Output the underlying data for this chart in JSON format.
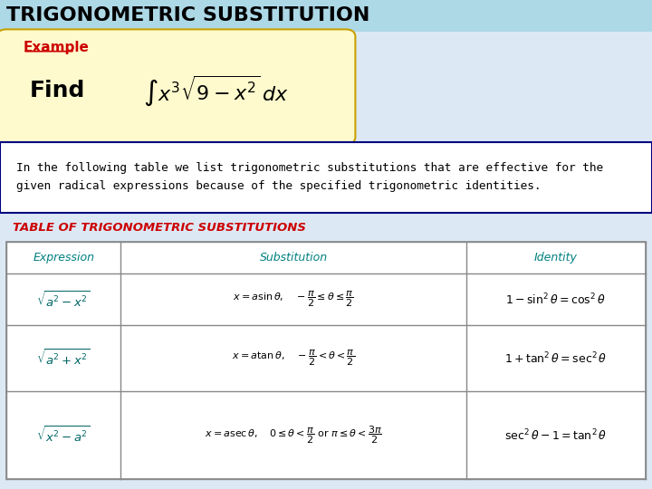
{
  "title": "TRIGONOMETRIC SUBSTITUTION",
  "title_bg": "#add8e6",
  "title_color": "#000000",
  "title_fontsize": 16,
  "example_label": "Example",
  "example_label_color": "#cc0000",
  "example_bg": "#fffacd",
  "example_border": "#c8a000",
  "find_text": "Find",
  "find_formula": "$\\int x^3 \\sqrt{9 - x^2}\\, dx$",
  "info_text": "In the following table we list trigonometric substitutions that are effective for the\ngiven radical expressions because of the specified trigonometric identities.",
  "info_border": "#000080",
  "table_title": "TABLE OF TRIGONOMETRIC SUBSTITUTIONS",
  "table_title_color": "#cc0000",
  "col_headers": [
    "Expression",
    "Substitution",
    "Identity"
  ],
  "col_header_color": "#008080",
  "row1_expr": "$\\sqrt{a^2 - x^2}$",
  "row1_sub": "$x = a \\sin \\theta, \\quad -\\dfrac{\\pi}{2} \\leq \\theta \\leq \\dfrac{\\pi}{2}$",
  "row1_id": "$1 - \\sin^2\\theta = \\cos^2\\theta$",
  "row2_expr": "$\\sqrt{a^2 + x^2}$",
  "row2_sub": "$x = a \\tan \\theta, \\quad -\\dfrac{\\pi}{2} < \\theta < \\dfrac{\\pi}{2}$",
  "row2_id": "$1 + \\tan^2\\theta = \\sec^2\\theta$",
  "row3_expr": "$\\sqrt{x^2 - a^2}$",
  "row3_sub": "$x = a \\sec \\theta, \\quad 0 \\leq \\theta < \\dfrac{\\pi}{2} \\text{ or } \\pi \\leq \\theta < \\dfrac{3\\pi}{2}$",
  "row3_id": "$\\sec^2\\theta - 1 = \\tan^2\\theta$",
  "main_bg": "#dce9f5"
}
